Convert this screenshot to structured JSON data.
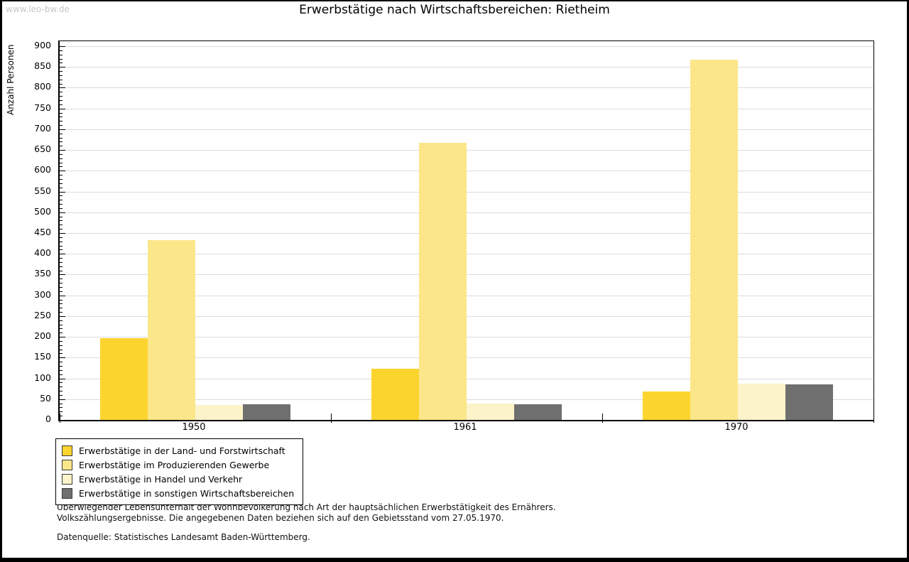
{
  "page": {
    "watermark": "www.leo-bw.de"
  },
  "chart_data": {
    "type": "bar",
    "title": "Erwerbstätige nach Wirtschaftsbereichen: Rietheim",
    "ylabel": "Anzahl Personen",
    "xlabel": "",
    "categories": [
      "1950",
      "1961",
      "1970"
    ],
    "series": [
      {
        "name": "Erwerbstätige in der Land- und Forstwirtschaft",
        "color": "#FCD42E",
        "values": [
          197,
          123,
          68
        ]
      },
      {
        "name": "Erwerbstätige im Produzierenden Gewerbe",
        "color": "#FBE78A",
        "values": [
          433,
          668,
          867
        ]
      },
      {
        "name": "Erwerbstätige in Handel und Verkehr",
        "color": "#FCF3C9",
        "values": [
          36,
          40,
          87
        ]
      },
      {
        "name": "Erwerbstätige in sonstigen Wirtschaftsbereichen",
        "color": "#6F6F6F",
        "values": [
          38,
          38,
          85
        ]
      }
    ],
    "ylim": [
      0,
      900
    ],
    "ytick_major": 50,
    "ytick_minor": 10,
    "grid": true,
    "gridline_color": "#DCDCDC",
    "legend_position": "bottom-left"
  },
  "footer": {
    "lines": [
      "Überwiegender Lebensunterhalt der Wohnbevölkerung nach Art der hauptsächlichen Erwerbstätigkeit des Ernährers.",
      "Volkszählungsergebnisse. Die angegebenen Daten beziehen sich auf den Gebietsstand vom 27.05.1970.",
      "Datenquelle: Statistisches Landesamt Baden-Württemberg."
    ]
  }
}
